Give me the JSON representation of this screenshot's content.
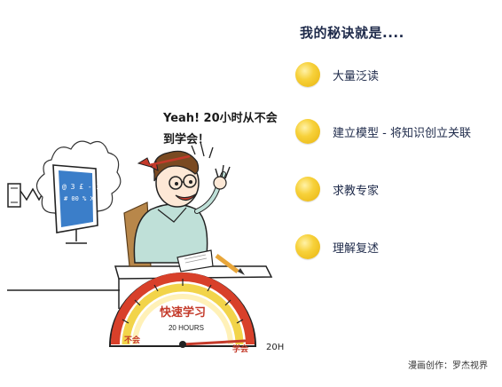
{
  "panel": {
    "title": "我的秘诀就是....",
    "tips": [
      {
        "label": "大量泛读",
        "icon": "yellow-dot-icon"
      },
      {
        "label": "建立模型 - 将知识创立关联",
        "icon": "yellow-dot-icon"
      },
      {
        "label": "求教专家",
        "icon": "yellow-dot-icon"
      },
      {
        "label": "理解复述",
        "icon": "yellow-dot-icon"
      }
    ]
  },
  "comic": {
    "speech_line1": "Yeah! 20小时从不会",
    "speech_line2": "到学会！",
    "gauge_title": "快速学习",
    "gauge_hours": "20 HOURS",
    "gauge_left": "不会",
    "gauge_right": "学会",
    "gauge_end": "20H",
    "monitor_text_1": "@ 3 £ - Z",
    "monitor_text_2": "# 00 % X X"
  },
  "credit": "漫画创作：罗杰视界",
  "colors": {
    "dot": "#f0c020",
    "text": "#1e2a4a",
    "gauge_red": "#d8402a",
    "gauge_yellow": "#f2d44a",
    "monitor": "#3b7ec9"
  }
}
